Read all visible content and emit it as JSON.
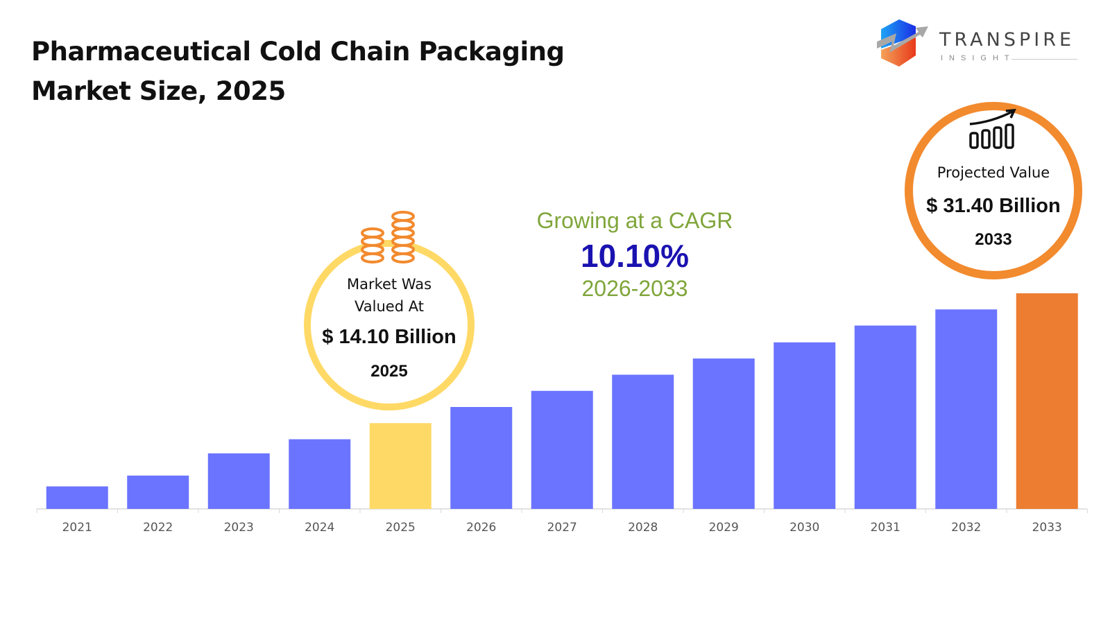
{
  "header": {
    "title_line1": "Pharmaceutical Cold Chain Packaging",
    "title_line2": "Market Size, 2025"
  },
  "logo": {
    "name": "TRANSPIRE",
    "sub": "INSIGHT"
  },
  "callout_2025": {
    "label_line1": "Market Was",
    "label_line2": "Valued At",
    "value": "$ 14.10 Billion",
    "year": "2025",
    "icon": "coin-stack-icon",
    "ring_color": "#FFD966"
  },
  "callout_2033": {
    "label": "Projected Value",
    "value": "$ 31.40 Billion",
    "year": "2033",
    "icon": "growth-bar-chart-icon",
    "ring_color": "#F28A2E"
  },
  "cagr": {
    "intro": "Growing at a CAGR",
    "rate": "10.10%",
    "period": "2026-2033",
    "intro_color": "#7FA53A",
    "rate_color": "#1A12B0"
  },
  "chart_data": {
    "type": "bar",
    "title": "",
    "xlabel": "",
    "ylabel": "",
    "categories": [
      "2021",
      "2022",
      "2023",
      "2024",
      "2025",
      "2026",
      "2027",
      "2028",
      "2029",
      "2030",
      "2031",
      "2032",
      "2033"
    ],
    "values": [
      5.67,
      7.11,
      10.07,
      11.95,
      14.1,
      16.25,
      18.4,
      20.55,
      22.71,
      24.86,
      27.1,
      29.25,
      31.4
    ],
    "ylim": [
      4.24,
      31.4
    ],
    "grid": false,
    "y_axis_visible": false,
    "colors": {
      "default": "#6B74FF",
      "2025": "#FFD966",
      "2033": "#ED7D31"
    }
  }
}
